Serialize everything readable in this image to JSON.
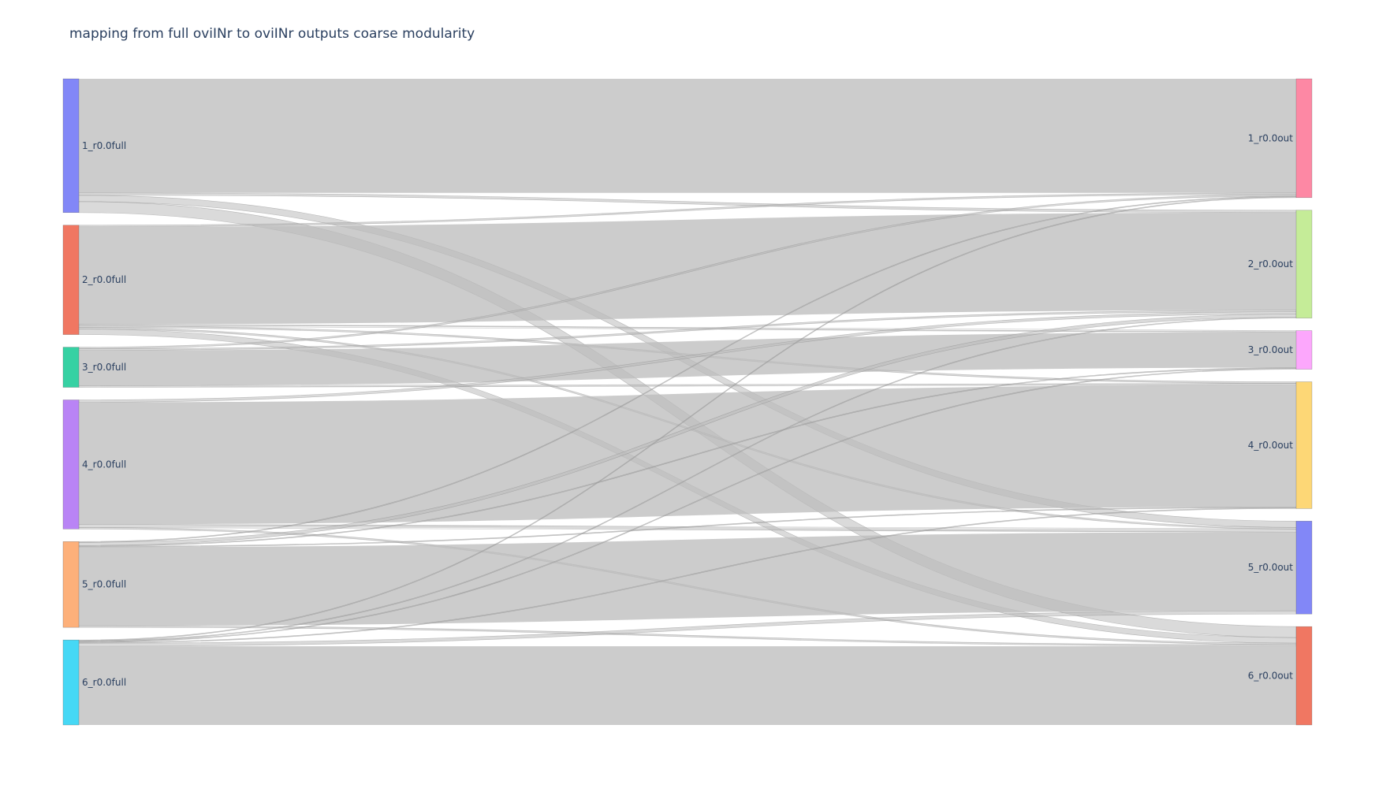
{
  "title": "mapping from full oviINr to oviINr outputs coarse modularity",
  "chart_data": {
    "type": "sankey",
    "title": "mapping from full oviINr to oviINr outputs coarse modularity",
    "link_color": "#bbbbbb",
    "sources": [
      {
        "label": "1_r0.0full",
        "color": "#8287f7"
      },
      {
        "label": "2_r0.0full",
        "color": "#f07762"
      },
      {
        "label": "3_r0.0full",
        "color": "#36d1a3"
      },
      {
        "label": "4_r0.0full",
        "color": "#b984f5"
      },
      {
        "label": "5_r0.0full",
        "color": "#fdb07a"
      },
      {
        "label": "6_r0.0full",
        "color": "#46d8f5"
      }
    ],
    "targets": [
      {
        "label": "1_r0.0out",
        "color": "#fd88a4"
      },
      {
        "label": "2_r0.0out",
        "color": "#c5ec98"
      },
      {
        "label": "3_r0.0out",
        "color": "#fca7fc"
      },
      {
        "label": "4_r0.0out",
        "color": "#fdd776"
      },
      {
        "label": "5_r0.0out",
        "color": "#8287f7"
      },
      {
        "label": "6_r0.0out",
        "color": "#f07762"
      }
    ],
    "links": [
      [
        145,
        3,
        0,
        0,
        8,
        14
      ],
      [
        2,
        124,
        2,
        2,
        2,
        7
      ],
      [
        2,
        2,
        45,
        2,
        0,
        0
      ],
      [
        0,
        3,
        0,
        155,
        4,
        2
      ],
      [
        1,
        4,
        1,
        1,
        100,
        2
      ],
      [
        1,
        1,
        1,
        1,
        4,
        100
      ]
    ]
  }
}
